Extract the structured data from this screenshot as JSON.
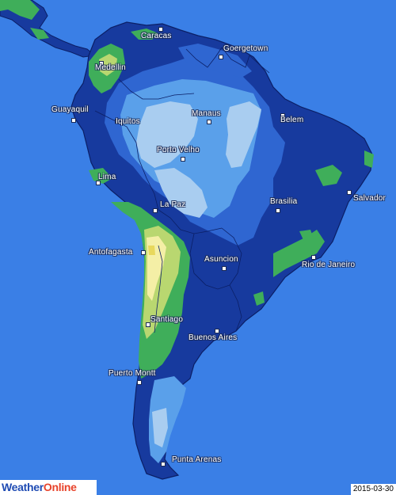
{
  "brand": {
    "part1": "Weather",
    "part2": "Online"
  },
  "date": "2015-03-30",
  "cities": [
    {
      "id": "caracas",
      "name": "Caracas"
    },
    {
      "id": "georgetown",
      "name": "Goergetown"
    },
    {
      "id": "medellin",
      "name": "Medellin"
    },
    {
      "id": "guayaquil",
      "name": "Guayaquil"
    },
    {
      "id": "iquitos",
      "name": "Iquitos"
    },
    {
      "id": "manaus",
      "name": "Manaus"
    },
    {
      "id": "belem",
      "name": "Belem"
    },
    {
      "id": "porto-velho",
      "name": "Porto Velho"
    },
    {
      "id": "lima",
      "name": "Lima"
    },
    {
      "id": "la-paz",
      "name": "La Paz"
    },
    {
      "id": "brasilia",
      "name": "Brasilia"
    },
    {
      "id": "salvador",
      "name": "Salvador"
    },
    {
      "id": "antofagasta",
      "name": "Antofagasta"
    },
    {
      "id": "asuncion",
      "name": "Asuncion"
    },
    {
      "id": "rio",
      "name": "Rio de Janeiro"
    },
    {
      "id": "santiago",
      "name": "Santiago"
    },
    {
      "id": "buenos-aires",
      "name": "Buenos Aires"
    },
    {
      "id": "puerto-montt",
      "name": "Puerto Montt"
    },
    {
      "id": "punta-arenas",
      "name": "Punta Arenas"
    }
  ],
  "colors": {
    "ocean": "#3a7fe6",
    "land_dark": "#173a9e",
    "land_mid": "#2f66d1",
    "land_light": "#5aa0ea",
    "land_pale": "#a9cdf0",
    "green": "#3fae5a",
    "yellow_green": "#b9d770",
    "pale_yellow": "#f4efa6"
  }
}
